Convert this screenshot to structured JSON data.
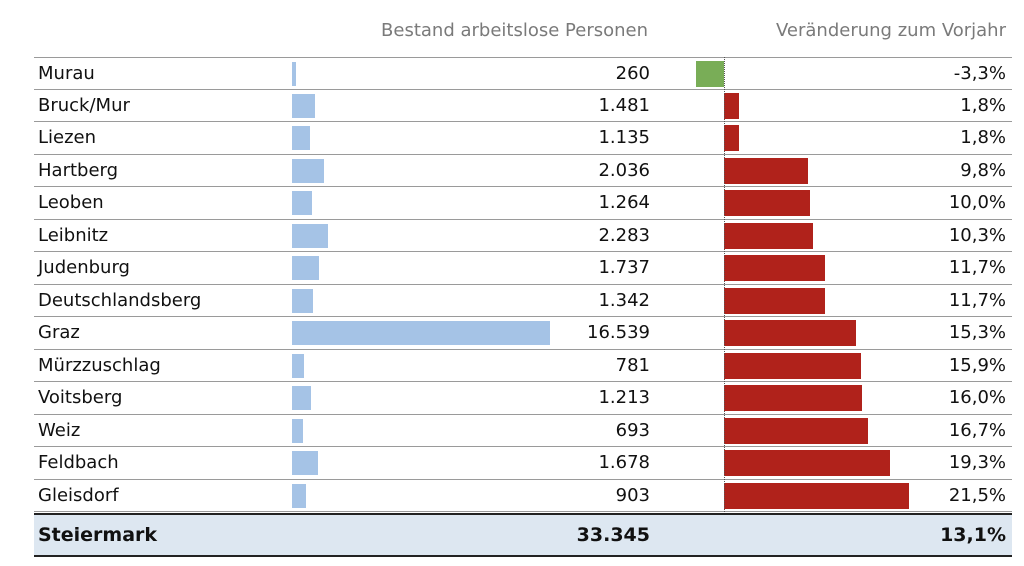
{
  "header": {
    "count_label": "Bestand arbeitslose Personen",
    "change_label": "Veränderung zum Vorjahr"
  },
  "colors": {
    "count_bar": "#a5c3e6",
    "change_positive": "#b0221b",
    "change_negative": "#79ad57",
    "total_row_bg": "#dde7f1"
  },
  "chart_data": {
    "type": "bar",
    "categories": [
      "Murau",
      "Bruck/Mur",
      "Liezen",
      "Hartberg",
      "Leoben",
      "Leibnitz",
      "Judenburg",
      "Deutschlandsberg",
      "Graz",
      "Mürzzuschlag",
      "Voitsberg",
      "Weiz",
      "Feldbach",
      "Gleisdorf"
    ],
    "series": [
      {
        "name": "Bestand arbeitslose Personen",
        "values": [
          260,
          1481,
          1135,
          2036,
          1264,
          2283,
          1737,
          1342,
          16539,
          781,
          1213,
          693,
          1678,
          903
        ],
        "labels": [
          "260",
          "1.481",
          "1.135",
          "2.036",
          "1.264",
          "2.283",
          "1.737",
          "1.342",
          "16.539",
          "781",
          "1.213",
          "693",
          "1.678",
          "903"
        ]
      },
      {
        "name": "Veränderung zum Vorjahr",
        "values": [
          -3.3,
          1.8,
          1.8,
          9.8,
          10.0,
          10.3,
          11.7,
          11.7,
          15.3,
          15.9,
          16.0,
          16.7,
          19.3,
          21.5
        ],
        "labels": [
          "-3,3%",
          "1,8%",
          "1,8%",
          "9,8%",
          "10,0%",
          "10,3%",
          "11,7%",
          "11,7%",
          "15,3%",
          "15,9%",
          "16,0%",
          "16,7%",
          "19,3%",
          "21,5%"
        ]
      }
    ],
    "total": {
      "name": "Steiermark",
      "count_label": "33.345",
      "change_label": "13,1%"
    }
  }
}
